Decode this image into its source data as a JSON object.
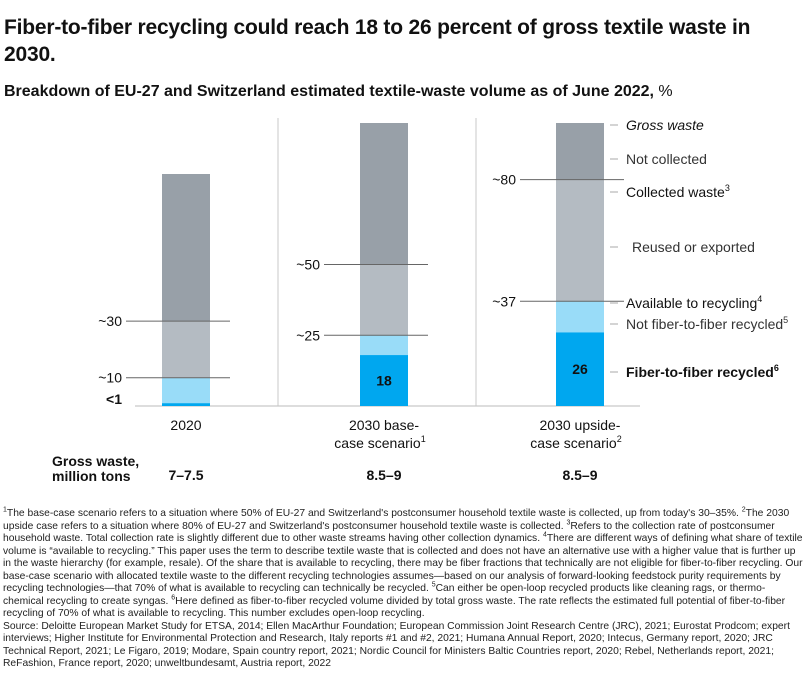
{
  "title": "Fiber-to-fiber recycling could reach 18 to 26 percent of gross textile waste in 2030.",
  "subtitle": {
    "bold": "Breakdown of EU-27 and Switzerland estimated textile-waste volume as of June 2022,",
    "unit": " %"
  },
  "colors": {
    "gross_not_collected": "#98a0a8",
    "reused_exported": "#b4bbc2",
    "not_f2f": "#99dcf8",
    "f2f": "#00a7ef",
    "gridline": "#666666",
    "divider": "#c8c8c8"
  },
  "chart_data": {
    "type": "bar",
    "stacked": true,
    "unit": "%",
    "categories": [
      "2020",
      "2030 base-case scenario",
      "2030 upside-case scenario"
    ],
    "category_labels": [
      {
        "line1": "2020",
        "line2": "",
        "sup": ""
      },
      {
        "line1": "2030 base-",
        "line2": "case scenario",
        "sup": "1"
      },
      {
        "line1": "2030 upside-",
        "line2": "case scenario",
        "sup": "2"
      }
    ],
    "gross_waste_million_tons": [
      "7–7.5",
      "8.5–9",
      "8.5–9"
    ],
    "gross_waste_label": [
      "Gross waste,",
      "million tons"
    ],
    "bars": [
      {
        "segments": [
          {
            "key": "not_collected",
            "from": 30,
            "to": 100
          },
          {
            "key": "reused_exported",
            "from": 10,
            "to": 30
          },
          {
            "key": "not_f2f",
            "from": 1,
            "to": 10
          },
          {
            "key": "f2f",
            "from": 0,
            "to": 1
          }
        ],
        "markers": [
          {
            "value": 30,
            "label": "~30"
          },
          {
            "value": 10,
            "label": "~10"
          },
          {
            "value": 1,
            "label": "<1",
            "bold": true
          }
        ],
        "inside_label": ""
      },
      {
        "segments": [
          {
            "key": "not_collected",
            "from": 50,
            "to": 100
          },
          {
            "key": "reused_exported",
            "from": 25,
            "to": 50
          },
          {
            "key": "not_f2f",
            "from": 18,
            "to": 25
          },
          {
            "key": "f2f",
            "from": 0,
            "to": 18
          }
        ],
        "markers": [
          {
            "value": 50,
            "label": "~50"
          },
          {
            "value": 25,
            "label": "~25"
          }
        ],
        "inside_label": "18"
      },
      {
        "segments": [
          {
            "key": "not_collected",
            "from": 80,
            "to": 100
          },
          {
            "key": "reused_exported",
            "from": 37,
            "to": 80
          },
          {
            "key": "not_f2f",
            "from": 26,
            "to": 37
          },
          {
            "key": "f2f",
            "from": 0,
            "to": 26
          }
        ],
        "markers": [
          {
            "value": 80,
            "label": "~80"
          },
          {
            "value": 37,
            "label": "~37"
          }
        ],
        "inside_label": "26"
      }
    ],
    "legend": [
      {
        "text": "Gross waste",
        "style": "italic",
        "sup": ""
      },
      {
        "text": "Not collected",
        "style": "normal",
        "sup": ""
      },
      {
        "text": "Collected waste",
        "style": "emph",
        "sup": "3"
      },
      {
        "text": "Reused or exported",
        "style": "normal",
        "sup": ""
      },
      {
        "text": "Available to recycling",
        "style": "emph",
        "sup": "4"
      },
      {
        "text": "Not fiber-to-fiber recycled",
        "style": "normal",
        "sup": "5"
      },
      {
        "text": "Fiber-to-fiber recycled",
        "style": "bold",
        "sup": "6"
      }
    ]
  },
  "footnotes": [
    {
      "sup": "1",
      "text": "The base-case scenario refers to a situation where 50% of EU-27 and Switzerland's postconsumer household textile waste is collected, up from today's 30–35%."
    },
    {
      "sup": "2",
      "text": "The 2030 upside case refers to a situation where 80% of EU-27 and Switzerland's postconsumer household textile waste is collected."
    },
    {
      "sup": "3",
      "text": "Refers to the collection rate of postconsumer household waste. Total collection rate is slightly different due to other waste streams having other collection dynamics."
    },
    {
      "sup": "4",
      "text": "There are different ways of defining what share of textile volume is “available to recycling.” This paper uses the term to describe textile waste that is collected and does not have an alternative use with a higher value that is further up in the waste hierarchy (for example, resale). Of the share that is available to recycling, there may be fiber fractions that technically are not eligible for fiber-to-fiber recycling. Our base-case scenario with allocated textile waste to the different recycling technologies assumes—based on our analysis of forward-looking feedstock purity requirements by recycling technologies—that 70% of what is available to recycling can technically be recycled."
    },
    {
      "sup": "5",
      "text": "Can either be open-loop recycled products like cleaning rags, or thermo-chemical recycling to create syngas."
    },
    {
      "sup": "6",
      "text": "Here defined as fiber-to-fiber recycled volume divided by total gross waste. The rate reflects the estimated full potential of fiber-to-fiber recycling of 70% of what is available to recycling. This number excludes open-loop recycling."
    }
  ],
  "source": "Source: Deloitte European Market Study for ETSA, 2014; Ellen MacArthur Foundation; European Commission Joint Research Centre (JRC), 2021; Eurostat Prodcom; expert interviews; Higher Institute for Environmental Protection and Research, Italy reports #1 and #2, 2021; Humana Annual Report, 2020; Intecus, Germany report, 2020; JRC Technical Report, 2021; Le Figaro, 2019; Modare, Spain country report, 2021; Nordic Council for Ministers Baltic Countries report, 2020; Rebel, Netherlands report, 2021; ReFashion, France report, 2020; unweltbundesamt, Austria report, 2022"
}
